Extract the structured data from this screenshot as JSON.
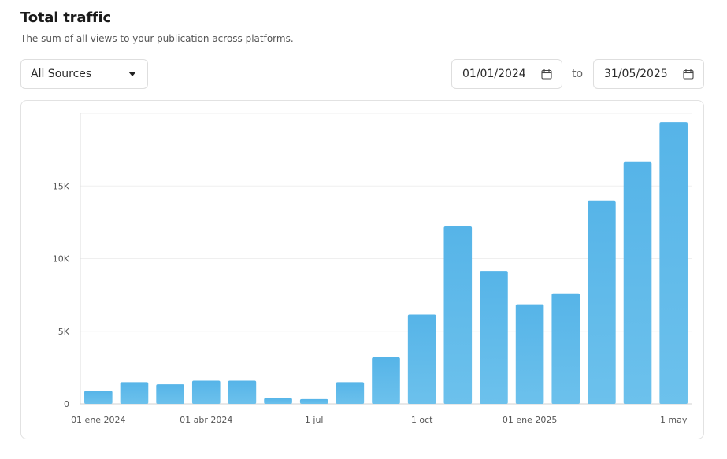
{
  "header": {
    "title": "Total traffic",
    "subtitle": "The sum of all views to your publication across platforms."
  },
  "filters": {
    "source": "All Sources",
    "date_from": "01/01/2024",
    "to_label": "to",
    "date_to": "31/05/2025"
  },
  "colors": {
    "bar": "#6cc1ec",
    "bar_top": "#56b4e8",
    "grid": "#efefef"
  },
  "chart_data": {
    "type": "bar",
    "categories": [
      "Jan 2024",
      "Feb 2024",
      "Mar 2024",
      "Apr 2024",
      "May 2024",
      "Jun 2024",
      "Jul 2024",
      "Aug 2024",
      "Sep 2024",
      "Oct 2024",
      "Nov 2024",
      "Dec 2024",
      "Jan 2025",
      "Feb 2025",
      "Mar 2025",
      "Apr 2025",
      "May 2025"
    ],
    "values": [
      900,
      1500,
      1350,
      1600,
      1600,
      400,
      330,
      1500,
      3200,
      6150,
      12250,
      9150,
      6850,
      7600,
      14000,
      16650,
      19400
    ],
    "x_tick_labels": [
      {
        "label": "01 ene 2024",
        "category_index": 0
      },
      {
        "label": "01 abr 2024",
        "category_index": 3
      },
      {
        "label": "1 jul",
        "category_index": 6
      },
      {
        "label": "1 oct",
        "category_index": 9
      },
      {
        "label": "01 ene 2025",
        "category_index": 12
      },
      {
        "label": "1 may",
        "category_index": 16
      }
    ],
    "y_ticks": [
      {
        "value": 0,
        "label": "0"
      },
      {
        "value": 5000,
        "label": "5K"
      },
      {
        "value": 10000,
        "label": "10K"
      },
      {
        "value": 15000,
        "label": "15K"
      }
    ],
    "ylim": [
      0,
      20000
    ],
    "grid": true,
    "xlabel": "",
    "ylabel": ""
  }
}
